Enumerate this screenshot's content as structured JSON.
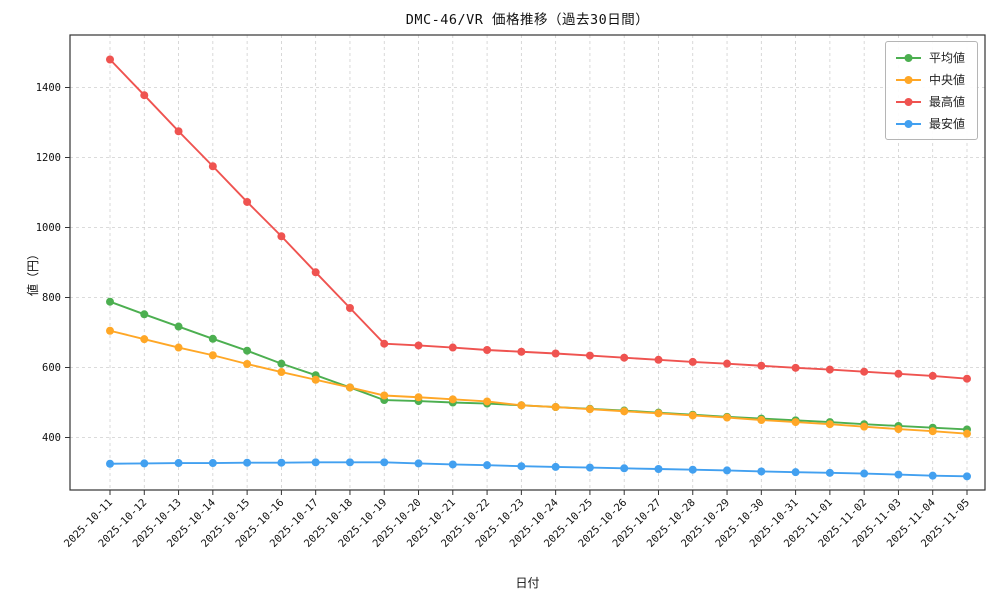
{
  "chart_data": {
    "type": "line",
    "title": "DMC-46/VR 価格推移（過去30日間）",
    "xlabel": "日付",
    "ylabel": "値（円）",
    "ylim": [
      250,
      1550
    ],
    "yticks": [
      400,
      600,
      800,
      1000,
      1200,
      1400
    ],
    "grid": true,
    "legend_position": "upper right",
    "colors": {
      "grid": "#cfcfcf",
      "axis": "#333333",
      "tick_label": "#111111"
    },
    "categories": [
      "2025-10-11",
      "2025-10-12",
      "2025-10-13",
      "2025-10-14",
      "2025-10-15",
      "2025-10-16",
      "2025-10-17",
      "2025-10-18",
      "2025-10-19",
      "2025-10-20",
      "2025-10-21",
      "2025-10-22",
      "2025-10-23",
      "2025-10-24",
      "2025-10-25",
      "2025-10-26",
      "2025-10-27",
      "2025-10-28",
      "2025-10-29",
      "2025-10-30",
      "2025-10-31",
      "2025-11-01",
      "2025-11-02",
      "2025-11-03",
      "2025-11-04",
      "2025-11-05"
    ],
    "series": [
      {
        "name": "平均値",
        "color": "#4caf50",
        "values": [
          788,
          752,
          717,
          682,
          648,
          611,
          578,
          543,
          507,
          504,
          500,
          497,
          492,
          487,
          482,
          477,
          471,
          465,
          459,
          454,
          449,
          444,
          438,
          433,
          428,
          423
        ]
      },
      {
        "name": "中央値",
        "color": "#ffa726",
        "values": [
          705,
          681,
          657,
          635,
          610,
          587,
          565,
          543,
          520,
          515,
          509,
          503,
          492,
          487,
          481,
          475,
          469,
          463,
          457,
          450,
          444,
          438,
          431,
          424,
          418,
          411
        ]
      },
      {
        "name": "最高値",
        "color": "#ef5350",
        "values": [
          1480,
          1378,
          1275,
          1175,
          1073,
          975,
          872,
          770,
          668,
          663,
          657,
          650,
          645,
          640,
          634,
          628,
          622,
          616,
          611,
          605,
          599,
          594,
          588,
          582,
          576,
          568
        ]
      },
      {
        "name": "最安値",
        "color": "#42a0f0",
        "values": [
          325,
          326,
          327,
          327,
          328,
          328,
          329,
          329,
          329,
          326,
          323,
          321,
          318,
          316,
          314,
          312,
          310,
          308,
          306,
          303,
          301,
          299,
          297,
          294,
          291,
          289
        ]
      }
    ]
  }
}
